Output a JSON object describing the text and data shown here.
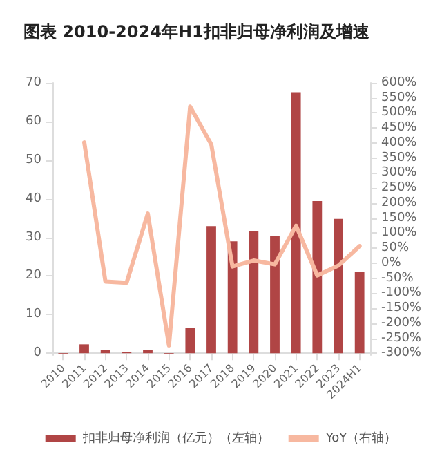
{
  "chart_data": {
    "type": "bar",
    "title": "图表 2010-2024年H1扣非归母净利润及增速",
    "categories": [
      "2010",
      "2011",
      "2012",
      "2013",
      "2014",
      "2015",
      "2016",
      "2017",
      "2018",
      "2019",
      "2020",
      "2021",
      "2022",
      "2023",
      "2024H1"
    ],
    "series": [
      {
        "name": "扣非归母净利润（亿元）（左轴）",
        "color": "#b04545",
        "values": [
          -0.3,
          2.3,
          0.9,
          0.3,
          0.8,
          -0.3,
          6.6,
          32.9,
          29,
          31.6,
          30.3,
          67.6,
          39.4,
          34.8,
          21
        ]
      },
      {
        "name": "YoY（右轴）",
        "type": "line",
        "axis": "y2",
        "color": "#f7b8a0",
        "values": [
          null,
          402,
          -61,
          -65,
          165,
          -274,
          521,
          395,
          -11,
          9,
          -4,
          125,
          -41,
          -8,
          57
        ]
      }
    ],
    "ylim": [
      -0.5,
      70
    ],
    "yticks": [
      0,
      10,
      20,
      30,
      40,
      50,
      60,
      70
    ],
    "y2lim": [
      -306,
      600
    ],
    "y2ticks": [
      {
        "value": 600,
        "label": "600%"
      },
      {
        "value": 550,
        "label": "550%"
      },
      {
        "value": 500,
        "label": "500%"
      },
      {
        "value": 450,
        "label": "450%"
      },
      {
        "value": 400,
        "label": "400%"
      },
      {
        "value": 350,
        "label": "350%"
      },
      {
        "value": 300,
        "label": "300%"
      },
      {
        "value": 250,
        "label": "250%"
      },
      {
        "value": 200,
        "label": "200%"
      },
      {
        "value": 150,
        "label": "150%"
      },
      {
        "value": 100,
        "label": "100%"
      },
      {
        "value": 50,
        "label": "50%"
      },
      {
        "value": 0,
        "label": "0%"
      },
      {
        "value": -50,
        "label": "-50%"
      },
      {
        "value": -100,
        "label": "-100%"
      },
      {
        "value": -150,
        "label": "-150%"
      },
      {
        "value": -200,
        "label": "-200%"
      },
      {
        "value": -250,
        "label": "-250%"
      },
      {
        "value": -300,
        "label": "-300%"
      }
    ],
    "grid": false,
    "legend": "bottom",
    "marker": "none"
  }
}
